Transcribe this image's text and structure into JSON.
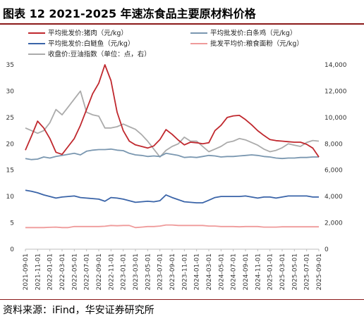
{
  "title": "图表 12  2021-2025 年速冻食品主要原材料价格",
  "source": "资料来源：iFind，华安证券研究所",
  "chart_data": {
    "type": "line",
    "x": [
      "2021-09-01",
      "2021-10-01",
      "2021-11-01",
      "2021-12-01",
      "2022-01-01",
      "2022-02-01",
      "2022-03-01",
      "2022-04-01",
      "2022-05-01",
      "2022-06-01",
      "2022-07-01",
      "2022-08-01",
      "2022-09-01",
      "2022-10-01",
      "2022-11-01",
      "2022-12-01",
      "2023-01-01",
      "2023-02-01",
      "2023-03-01",
      "2023-04-01",
      "2023-05-01",
      "2023-06-01",
      "2023-07-01",
      "2023-08-01",
      "2023-09-01",
      "2023-10-01",
      "2023-11-01",
      "2023-12-01",
      "2024-01-01",
      "2024-02-01",
      "2024-03-01",
      "2024-04-01",
      "2024-05-01",
      "2024-06-01",
      "2024-07-01",
      "2024-08-01",
      "2024-09-01",
      "2024-10-01",
      "2024-11-01",
      "2024-12-01",
      "2025-01-01",
      "2025-02-01",
      "2025-03-01",
      "2025-04-01",
      "2025-05-01",
      "2025-06-01",
      "2025-07-01",
      "2025-08-01",
      "2025-09-01"
    ],
    "x_ticks": [
      "2021-09-01",
      "2021-11-01",
      "2022-01-01",
      "2022-03-01",
      "2022-05-01",
      "2022-07-01",
      "2022-09-01",
      "2022-11-01",
      "2023-01-01",
      "2023-03-01",
      "2023-05-01",
      "2023-07-01",
      "2023-09-01",
      "2023-11-01",
      "2024-01-01",
      "2024-03-01",
      "2024-05-01",
      "2024-07-01",
      "2024-09-01",
      "2024-11-01",
      "2025-01-01",
      "2025-03-01",
      "2025-05-01",
      "2025-07-01",
      "2025-09-01"
    ],
    "y_left": {
      "ticks": [
        0,
        5,
        10,
        15,
        20,
        25,
        30,
        35
      ],
      "lim": [
        0,
        35
      ]
    },
    "y_right": {
      "ticks": [
        "0",
        "2,000",
        "4,000",
        "6,000",
        "8,000",
        "10,000",
        "12,000",
        "14,000"
      ],
      "lim": [
        0,
        14000
      ]
    },
    "series": [
      {
        "name": "平均批发价:猪肉（元/kg）",
        "axis": "left",
        "color": "#c0282e",
        "values": [
          18.8,
          21.5,
          24.3,
          23.0,
          21.0,
          18.4,
          18.0,
          19.5,
          21.0,
          23.5,
          26.5,
          29.5,
          31.5,
          35.0,
          32.0,
          26.0,
          22.5,
          20.5,
          19.8,
          19.5,
          19.2,
          19.6,
          20.8,
          22.7,
          21.8,
          20.7,
          19.8,
          20.3,
          20.2,
          20.0,
          20.2,
          22.5,
          23.5,
          25.0,
          25.3,
          25.4,
          24.6,
          23.6,
          22.5,
          21.6,
          20.8,
          20.6,
          20.5,
          20.4,
          20.3,
          20.3,
          19.9,
          19.2,
          17.5
        ]
      },
      {
        "name": "平均批发价:白鲢鱼（元/kg）",
        "axis": "left",
        "color": "#3a64a8",
        "values": [
          11.2,
          11.0,
          10.7,
          10.3,
          10.0,
          9.7,
          9.9,
          10.0,
          10.1,
          9.8,
          9.7,
          9.6,
          9.5,
          9.1,
          9.8,
          9.7,
          9.5,
          9.2,
          8.9,
          9.0,
          9.1,
          9.0,
          9.2,
          10.3,
          9.8,
          9.4,
          9.0,
          8.9,
          8.8,
          8.8,
          9.3,
          9.8,
          10.0,
          10.0,
          10.0,
          10.0,
          10.1,
          9.9,
          9.7,
          9.9,
          9.9,
          9.7,
          9.9,
          10.1,
          10.1,
          10.1,
          10.1,
          9.9,
          9.9
        ]
      },
      {
        "name": "平均批发价:白条鸡（元/kg）",
        "axis": "left",
        "color": "#7a97b0",
        "values": [
          17.2,
          17.0,
          17.1,
          17.5,
          17.3,
          17.6,
          17.8,
          18.0,
          18.2,
          17.9,
          18.6,
          18.8,
          18.9,
          18.9,
          19.0,
          18.8,
          18.7,
          18.2,
          17.9,
          17.8,
          17.6,
          17.7,
          17.6,
          18.2,
          18.0,
          17.8,
          17.4,
          17.5,
          17.4,
          17.6,
          17.8,
          17.7,
          17.5,
          17.6,
          17.6,
          17.7,
          17.8,
          17.9,
          17.8,
          17.6,
          17.5,
          17.3,
          17.2,
          17.3,
          17.3,
          17.4,
          17.4,
          17.5,
          17.5
        ]
      },
      {
        "name": "批发平均价:粮食面粉（元/kg）",
        "axis": "left",
        "color": "#ef9a9a",
        "values": [
          4.1,
          4.1,
          4.1,
          4.1,
          4.15,
          4.2,
          4.1,
          4.1,
          4.3,
          4.3,
          4.3,
          4.3,
          4.3,
          4.35,
          4.5,
          4.45,
          4.5,
          4.5,
          4.1,
          4.2,
          4.3,
          4.3,
          4.4,
          4.6,
          4.6,
          4.5,
          4.5,
          4.5,
          4.5,
          4.5,
          4.4,
          4.4,
          4.3,
          4.3,
          4.3,
          4.25,
          4.3,
          4.3,
          4.3,
          4.2,
          4.2,
          4.2,
          4.25,
          4.25,
          4.25,
          4.25,
          4.25,
          4.25,
          4.25
        ]
      },
      {
        "name": "收盘价:豆油指数（单位：点，右）",
        "axis": "right",
        "color": "#ababab",
        "values": [
          9200,
          9000,
          8800,
          9000,
          9600,
          10600,
          10200,
          10800,
          11400,
          12000,
          10400,
          10200,
          10100,
          9200,
          9200,
          9300,
          9500,
          9300,
          9100,
          8700,
          8200,
          7600,
          7000,
          7500,
          7800,
          8000,
          8500,
          8200,
          8200,
          7800,
          7400,
          7600,
          7800,
          8100,
          8200,
          8400,
          8300,
          8100,
          7900,
          7600,
          7400,
          7500,
          7700,
          8000,
          7900,
          7800,
          8100,
          8250,
          8200
        ]
      }
    ]
  }
}
